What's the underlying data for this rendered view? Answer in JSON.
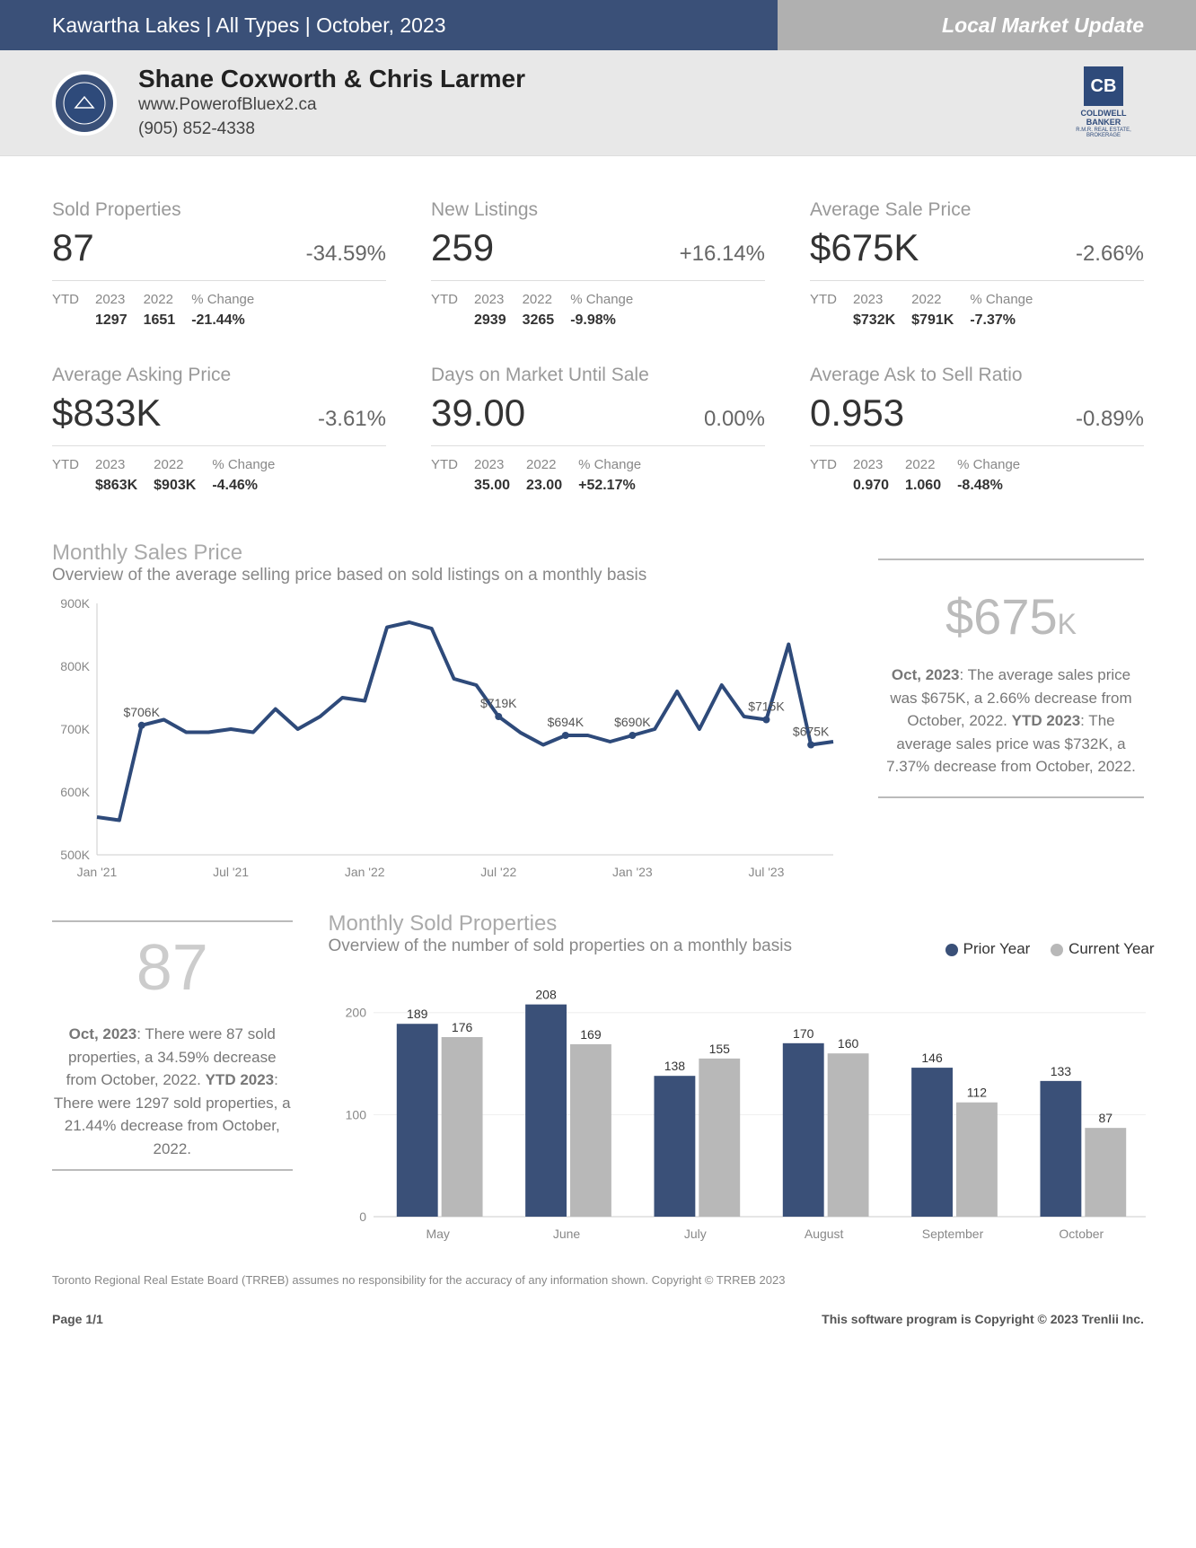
{
  "header": {
    "location": "Kawartha Lakes | All Types | October, 2023",
    "title": "Local Market Update"
  },
  "agent": {
    "names": "Shane Coxworth & Chris Larmer",
    "website": "www.PowerofBluex2.ca",
    "phone": "(905) 852-4338",
    "broker": "COLDWELL BANKER",
    "broker_sub": "R.M.R. REAL ESTATE, BROKERAGE"
  },
  "metrics": [
    {
      "title": "Sold Properties",
      "value": "87",
      "change": "-34.59%",
      "ytd2023": "1297",
      "ytd2022": "1651",
      "ytdchange": "-21.44%"
    },
    {
      "title": "New Listings",
      "value": "259",
      "change": "+16.14%",
      "ytd2023": "2939",
      "ytd2022": "3265",
      "ytdchange": "-9.98%"
    },
    {
      "title": "Average Sale Price",
      "value": "$675K",
      "change": "-2.66%",
      "ytd2023": "$732K",
      "ytd2022": "$791K",
      "ytdchange": "-7.37%"
    },
    {
      "title": "Average Asking Price",
      "value": "$833K",
      "change": "-3.61%",
      "ytd2023": "$863K",
      "ytd2022": "$903K",
      "ytdchange": "-4.46%"
    },
    {
      "title": "Days on Market Until Sale",
      "value": "39.00",
      "change": "0.00%",
      "ytd2023": "35.00",
      "ytd2022": "23.00",
      "ytdchange": "+52.17%"
    },
    {
      "title": "Average Ask to Sell Ratio",
      "value": "0.953",
      "change": "-0.89%",
      "ytd2023": "0.970",
      "ytd2022": "1.060",
      "ytdchange": "-8.48%"
    }
  ],
  "line_chart": {
    "title": "Monthly Sales Price",
    "subtitle": "Overview of the average selling price based on sold listings on a monthly basis",
    "ylim": [
      500,
      900
    ],
    "ytick_step": 100,
    "ytick_suffix": "K",
    "stroke_color": "#2e4a7a",
    "stroke_width": 4,
    "xlabels": [
      "Jan '21",
      "Jul '21",
      "Jan '22",
      "Jul '22",
      "Jan '23",
      "Jul '23"
    ],
    "data": [
      560,
      555,
      706,
      715,
      695,
      695,
      700,
      695,
      732,
      700,
      720,
      750,
      745,
      862,
      870,
      860,
      780,
      770,
      720,
      694,
      675,
      690,
      690,
      680,
      690,
      700,
      760,
      700,
      770,
      720,
      715,
      835,
      675,
      680
    ],
    "annotations": [
      {
        "i": 2,
        "label": "$706K"
      },
      {
        "i": 18,
        "label": "$719K"
      },
      {
        "i": 21,
        "label": "$694K"
      },
      {
        "i": 24,
        "label": "$690K"
      },
      {
        "i": 30,
        "label": "$715K"
      },
      {
        "i": 32,
        "label": "$675K"
      }
    ],
    "big_value": "$675",
    "big_suffix": "K",
    "desc_html": "<b>Oct, 2023</b>: The average sales price was $675K, a 2.66% decrease from October, 2022. <b>YTD 2023</b>: The average sales price was $732K, a 7.37% decrease from October, 2022."
  },
  "bar_chart": {
    "title": "Monthly Sold Properties",
    "subtitle": "Overview of the number of sold properties on a monthly basis",
    "legend_prior": "Prior Year",
    "legend_current": "Current Year",
    "color_prior": "#3a5078",
    "color_current": "#b8b8b8",
    "ylim": [
      0,
      200
    ],
    "ytick_step": 100,
    "categories": [
      "May",
      "June",
      "July",
      "August",
      "September",
      "October"
    ],
    "prior": [
      189,
      208,
      138,
      170,
      146,
      133
    ],
    "current": [
      176,
      169,
      155,
      160,
      112,
      87
    ],
    "big_value": "87",
    "desc_html": "<b>Oct, 2023</b>: There were 87 sold properties, a 34.59% decrease from October, 2022. <b>YTD 2023</b>: There were 1297 sold properties, a 21.44% decrease from October, 2022."
  },
  "footer": {
    "disclaimer": "Toronto Regional Real Estate Board (TRREB) assumes no responsibility for the accuracy of any information shown. Copyright © TRREB 2023",
    "page": "Page 1/1",
    "copyright": "This software program is Copyright © 2023 Trenlii Inc."
  }
}
